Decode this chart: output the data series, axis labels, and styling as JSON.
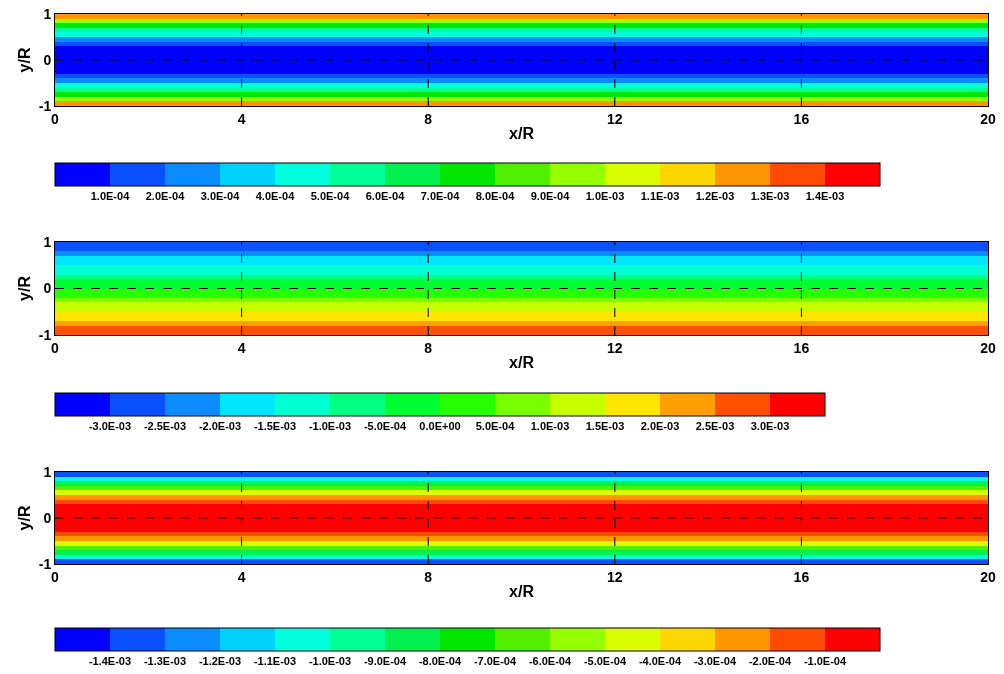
{
  "chart_data": [
    {
      "type": "heatmap",
      "xlabel": "x/R",
      "ylabel": "y/R",
      "xlim": [
        0,
        20
      ],
      "xticks": [
        0,
        4,
        8,
        12,
        16,
        20
      ],
      "ylim": [
        -1,
        1
      ],
      "yticks": [
        -1,
        0,
        1
      ],
      "grid": true,
      "line_style": "dashed",
      "y": [
        0.95,
        0.85,
        0.75,
        0.65,
        0.55,
        0.45,
        0.35,
        0.25,
        0.15,
        0.05,
        -0.05,
        -0.15,
        -0.25,
        -0.35,
        -0.45,
        -0.55,
        -0.65,
        -0.75,
        -0.85,
        -0.95
      ],
      "cells": [
        [
          0.00122
        ],
        [
          0.00098
        ],
        [
          0.00076
        ],
        [
          0.00057
        ],
        [
          0.00041
        ],
        [
          0.00027
        ],
        [
          0.00017
        ],
        [
          8e-05
        ],
        [
          3e-05
        ],
        [
          0.0
        ],
        [
          0.0
        ],
        [
          3e-05
        ],
        [
          8e-05
        ],
        [
          0.00017
        ],
        [
          0.00027
        ],
        [
          0.00041
        ],
        [
          0.00057
        ],
        [
          0.00076
        ],
        [
          0.00098
        ],
        [
          0.00122
        ]
      ],
      "clim": [
        0,
        0.0015
      ],
      "colors": [
        "#0000ff",
        "#0a50ff",
        "#0a8cff",
        "#00d2ff",
        "#00ffdc",
        "#00ff96",
        "#00f050",
        "#00e600",
        "#50f000",
        "#96ff00",
        "#dcff00",
        "#ffd700",
        "#ff9600",
        "#ff4b00",
        "#ff0000"
      ],
      "cticks": [
        {
          "value": 0.0001,
          "label": "1.0E-04"
        },
        {
          "value": 0.0002,
          "label": "2.0E-04"
        },
        {
          "value": 0.0003,
          "label": "3.0E-04"
        },
        {
          "value": 0.0004,
          "label": "4.0E-04"
        },
        {
          "value": 0.0005,
          "label": "5.0E-04"
        },
        {
          "value": 0.0006,
          "label": "6.0E-04"
        },
        {
          "value": 0.0007,
          "label": "7.0E-04"
        },
        {
          "value": 0.0008,
          "label": "8.0E-04"
        },
        {
          "value": 0.0009,
          "label": "9.0E-04"
        },
        {
          "value": 0.001,
          "label": "1.0E-03"
        },
        {
          "value": 0.0011,
          "label": "1.1E-03"
        },
        {
          "value": 0.0012,
          "label": "1.2E-03"
        },
        {
          "value": 0.0013,
          "label": "1.3E-03"
        },
        {
          "value": 0.0014,
          "label": "1.4E-03"
        }
      ]
    },
    {
      "type": "heatmap",
      "xlabel": "x/R",
      "ylabel": "y/R",
      "xlim": [
        0,
        20
      ],
      "xticks": [
        0,
        4,
        8,
        12,
        16,
        20
      ],
      "ylim": [
        -1,
        1
      ],
      "yticks": [
        -1,
        0,
        1
      ],
      "grid": true,
      "line_style": "dashed",
      "y": [
        0.95,
        0.85,
        0.75,
        0.65,
        0.55,
        0.45,
        0.35,
        0.25,
        0.15,
        0.05,
        -0.05,
        -0.15,
        -0.25,
        -0.35,
        -0.45,
        -0.55,
        -0.65,
        -0.75,
        -0.85,
        -0.95
      ],
      "cells": [
        [
          -0.00285
        ],
        [
          -0.00255
        ],
        [
          -0.00225
        ],
        [
          -0.00195
        ],
        [
          -0.00165
        ],
        [
          -0.00135
        ],
        [
          -0.00105
        ],
        [
          -0.00075
        ],
        [
          -0.00045
        ],
        [
          -0.00015
        ],
        [
          0.00015
        ],
        [
          0.00045
        ],
        [
          0.00075
        ],
        [
          0.00105
        ],
        [
          0.00135
        ],
        [
          0.00165
        ],
        [
          0.00195
        ],
        [
          0.00225
        ],
        [
          0.00255
        ],
        [
          0.00285
        ]
      ],
      "clim": [
        -0.0035,
        0.0035
      ],
      "colors": [
        "#0000ff",
        "#0a50ff",
        "#0a8cff",
        "#00e6ff",
        "#00ffd2",
        "#00ff82",
        "#00ff32",
        "#28ff00",
        "#78ff00",
        "#c8ff00",
        "#ffe600",
        "#ffa000",
        "#ff5000",
        "#ff0000"
      ],
      "cticks": [
        {
          "value": -0.003,
          "label": "-3.0E-03"
        },
        {
          "value": -0.0025,
          "label": "-2.5E-03"
        },
        {
          "value": -0.002,
          "label": "-2.0E-03"
        },
        {
          "value": -0.0015,
          "label": "-1.5E-03"
        },
        {
          "value": -0.001,
          "label": "-1.0E-03"
        },
        {
          "value": -0.0005,
          "label": "-5.0E-04"
        },
        {
          "value": 0,
          "label": "0.0E+00"
        },
        {
          "value": 0.0005,
          "label": "5.0E-04"
        },
        {
          "value": 0.001,
          "label": "1.0E-03"
        },
        {
          "value": 0.0015,
          "label": "1.5E-03"
        },
        {
          "value": 0.002,
          "label": "2.0E-03"
        },
        {
          "value": 0.0025,
          "label": "2.5E-03"
        },
        {
          "value": 0.003,
          "label": "3.0E-03"
        }
      ]
    },
    {
      "type": "heatmap",
      "xlabel": "x/R",
      "ylabel": "y/R",
      "xlim": [
        0,
        20
      ],
      "xticks": [
        0,
        4,
        8,
        12,
        16,
        20
      ],
      "ylim": [
        -1,
        1
      ],
      "yticks": [
        -1,
        0,
        1
      ],
      "grid": true,
      "line_style": "dashed",
      "y": [
        0.95,
        0.85,
        0.75,
        0.65,
        0.55,
        0.45,
        0.35,
        0.25,
        0.15,
        0.05,
        -0.05,
        -0.15,
        -0.25,
        -0.35,
        -0.45,
        -0.55,
        -0.65,
        -0.75,
        -0.85,
        -0.95
      ],
      "cells": [
        [
          -0.00131
        ],
        [
          -0.00105
        ],
        [
          -0.00082
        ],
        [
          -0.00061
        ],
        [
          -0.00044
        ],
        [
          -0.00029
        ],
        [
          -0.00018
        ],
        [
          -9e-05
        ],
        [
          -3e-05
        ],
        [
          0.0
        ],
        [
          0.0
        ],
        [
          -3e-05
        ],
        [
          -9e-05
        ],
        [
          -0.00018
        ],
        [
          -0.00029
        ],
        [
          -0.00044
        ],
        [
          -0.00061
        ],
        [
          -0.00082
        ],
        [
          -0.00105
        ],
        [
          -0.00131
        ]
      ],
      "clim": [
        -0.0015,
        0
      ],
      "colors": [
        "#0000ff",
        "#0a50ff",
        "#0a8cff",
        "#00d2ff",
        "#00ffdc",
        "#00ff96",
        "#00f050",
        "#00e600",
        "#50f000",
        "#96ff00",
        "#dcff00",
        "#ffd700",
        "#ff9600",
        "#ff4b00",
        "#ff0000"
      ],
      "cticks": [
        {
          "value": -0.0014,
          "label": "-1.4E-03"
        },
        {
          "value": -0.0013,
          "label": "-1.3E-03"
        },
        {
          "value": -0.0012,
          "label": "-1.2E-03"
        },
        {
          "value": -0.0011,
          "label": "-1.1E-03"
        },
        {
          "value": -0.001,
          "label": "-1.0E-03"
        },
        {
          "value": -0.0009,
          "label": "-9.0E-04"
        },
        {
          "value": -0.0008,
          "label": "-8.0E-04"
        },
        {
          "value": -0.0007,
          "label": "-7.0E-04"
        },
        {
          "value": -0.0006,
          "label": "-6.0E-04"
        },
        {
          "value": -0.0005,
          "label": "-5.0E-04"
        },
        {
          "value": -0.0004,
          "label": "-4.0E-04"
        },
        {
          "value": -0.0003,
          "label": "-3.0E-04"
        },
        {
          "value": -0.0002,
          "label": "-2.0E-04"
        },
        {
          "value": -0.0001,
          "label": "-1.0E-04"
        }
      ]
    }
  ]
}
